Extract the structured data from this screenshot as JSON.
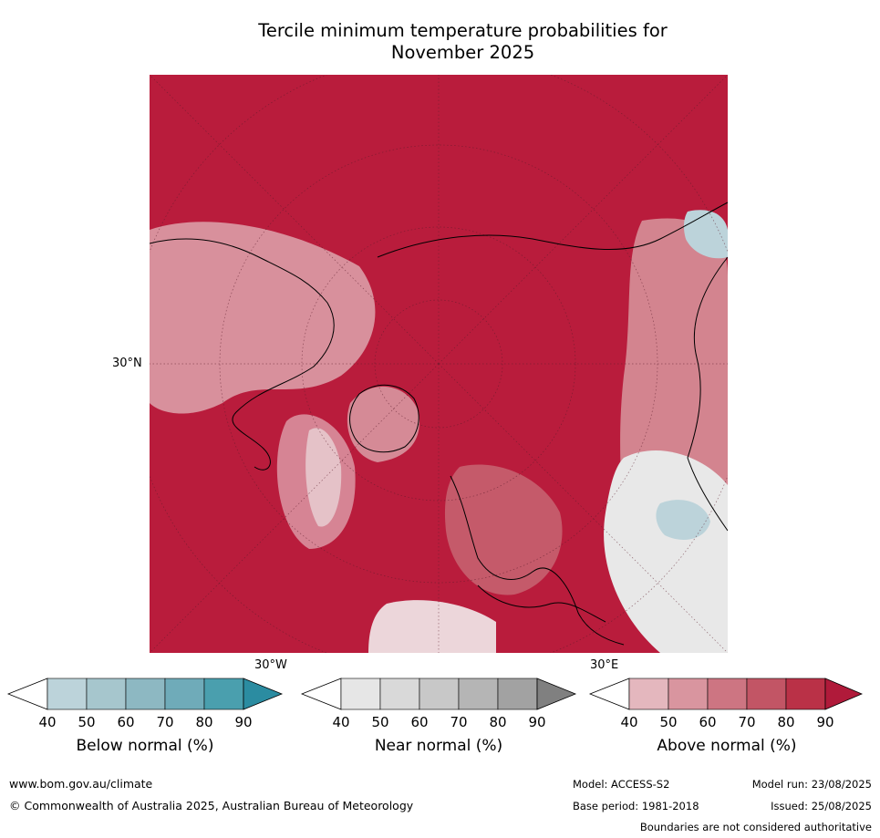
{
  "title_line1": "Tercile minimum temperature probabilities for",
  "title_line2": "November 2025",
  "map": {
    "lat_label": "30°N",
    "lon_label_left": "30°W",
    "lon_label_right": "30°E",
    "dominant_color": "#b91c3c"
  },
  "colorbars": [
    {
      "name": "below",
      "label": "Below normal (%)",
      "ticks": [
        "40",
        "50",
        "60",
        "70",
        "80",
        "90"
      ],
      "colors": [
        "#bcd3da",
        "#a6c6cd",
        "#8db8c2",
        "#6fabb9",
        "#4a9fae",
        "#2b8ca1"
      ]
    },
    {
      "name": "near",
      "label": "Near normal (%)",
      "ticks": [
        "40",
        "50",
        "60",
        "70",
        "80",
        "90"
      ],
      "colors": [
        "#e6e6e6",
        "#d9d9d9",
        "#c8c8c8",
        "#b5b5b5",
        "#a2a2a2",
        "#808080"
      ]
    },
    {
      "name": "above",
      "label": "Above normal (%)",
      "ticks": [
        "40",
        "50",
        "60",
        "70",
        "80",
        "90"
      ],
      "colors": [
        "#e4b7be",
        "#d9959f",
        "#cd7582",
        "#c25565",
        "#ba3147",
        "#b01a3a"
      ]
    }
  ],
  "footer": {
    "website": "www.bom.gov.au/climate",
    "copyright": "© Commonwealth of Australia 2025, Australian Bureau of Meteorology",
    "model": "Model: ACCESS-S2",
    "model_run": "Model run: 23/08/2025",
    "base_period": "Base period: 1981-2018",
    "issued": "Issued: 25/08/2025",
    "disclaimer": "Boundaries are not considered authoritative"
  }
}
